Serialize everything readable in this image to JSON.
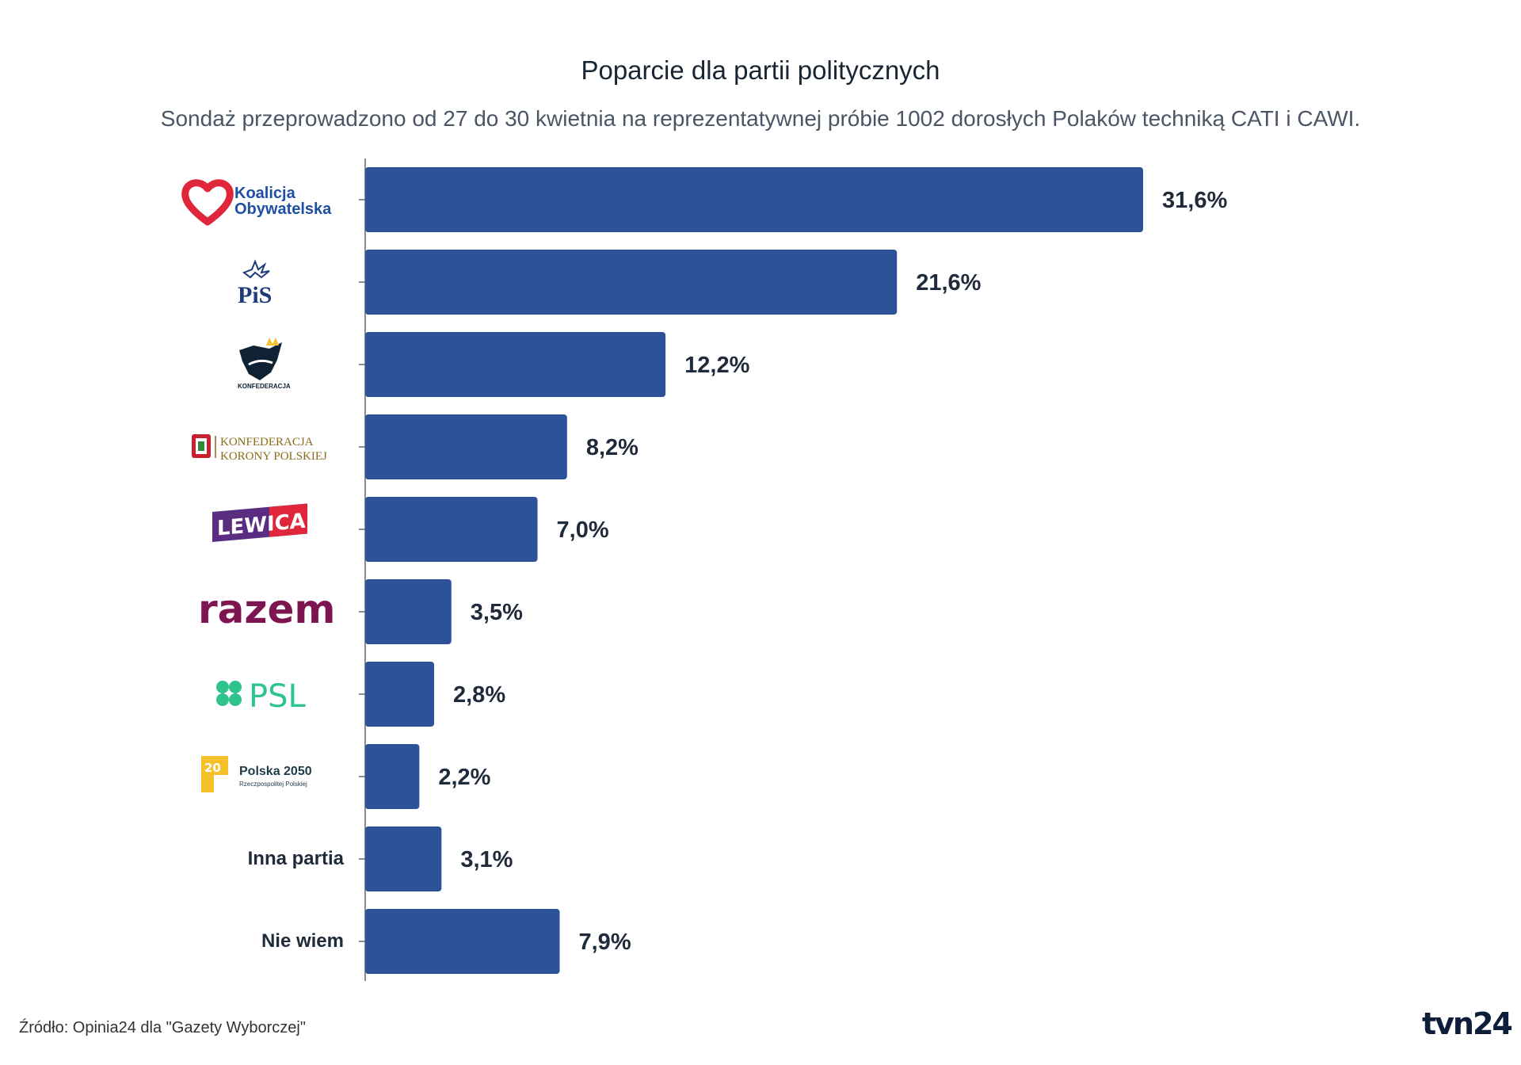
{
  "chart_data": {
    "type": "bar",
    "orientation": "horizontal",
    "title": "Poparcie dla partii politycznych",
    "subtitle": "Sondaż przeprowadzono od 27 do 30 kwietnia na reprezentatywnej próbie 1002 dorosłych Polaków techniką CATI i CAWI.",
    "categories": [
      "Koalicja Obywatelska",
      "PiS",
      "Konfederacja",
      "Konfederacja Korony Polskiej",
      "Lewica",
      "razem",
      "PSL",
      "Polska 2050",
      "Inna partia",
      "Nie wiem"
    ],
    "values": [
      31.6,
      21.6,
      12.2,
      8.2,
      7.0,
      3.5,
      2.8,
      2.2,
      3.1,
      7.9
    ],
    "value_labels": [
      "31,6%",
      "21,6%",
      "12,2%",
      "8,2%",
      "7,0%",
      "3,5%",
      "2,8%",
      "2,2%",
      "3,1%",
      "7,9%"
    ],
    "xlim": [
      0,
      40
    ],
    "grid": false,
    "bar_color": "#2d5299"
  },
  "logos": {
    "ko": {
      "line1": "Koalicja",
      "line2": "Obywatelska",
      "color": "#1e4fa3",
      "heart_color": "#e0263a"
    },
    "pis": {
      "text": "PiS",
      "color": "#1e3a7a"
    },
    "konf": {
      "text": "KONFEDERACJA",
      "color": "#0f2233"
    },
    "kkp": {
      "line1": "KONFEDERACJA",
      "line2": "KORONY POLSKIEJ",
      "color": "#8a6a1a"
    },
    "lewica": {
      "text": "LEWICA",
      "color": "#5a2d82",
      "accent": "#e0263a"
    },
    "razem": {
      "text": "razem",
      "color": "#7d1650"
    },
    "psl": {
      "text": "PSL",
      "color": "#2fc48d"
    },
    "p2050": {
      "line1": "Polska 2050",
      "line2": "Rzeczpospolitej Polskiej",
      "color": "#1d3b4a",
      "accent": "#f5c02a"
    }
  },
  "text_labels": {
    "inna": "Inna partia",
    "nie_wiem": "Nie wiem"
  },
  "source": "Źródło: Opinia24 dla \"Gazety Wyborczej\"",
  "brand": "tvn24"
}
